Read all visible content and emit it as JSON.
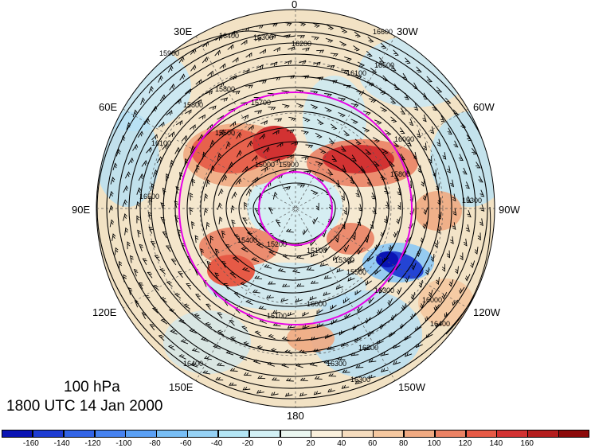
{
  "title": {
    "level": "100 hPa",
    "time": "1800 UTC 14 Jan 2000"
  },
  "longitude_labels": {
    "top": "0",
    "bottom": "180",
    "upper_left": "30E",
    "upper_right": "30W",
    "mid_upper_left": "60E",
    "mid_upper_right": "60W",
    "left": "90E",
    "right": "90W",
    "lower_left": "120E",
    "lower_right": "120W",
    "bottom_left": "150E",
    "bottom_right": "150W"
  },
  "contour_labels": [
    "16400",
    "16300",
    "16200",
    "16600",
    "16500",
    "15900",
    "15800",
    "15600",
    "15700",
    "15000",
    "15300",
    "15200",
    "15100",
    "15500",
    "16000",
    "16100",
    "15400",
    "15300",
    "16200",
    "16300",
    "16400",
    "16500",
    "16300",
    "15800",
    "15100",
    "16000",
    "16400",
    "16100",
    "15900",
    "15800",
    "16000",
    "16300"
  ],
  "colorbar": {
    "ticks": [
      "-160",
      "-140",
      "-120",
      "-100",
      "-80",
      "-60",
      "-40",
      "-20",
      "0",
      "20",
      "40",
      "60",
      "80",
      "100",
      "120",
      "140",
      "160"
    ],
    "colors": [
      "#0a14b4",
      "#1e3cd2",
      "#3264e6",
      "#4682f0",
      "#5aa0f5",
      "#78bef5",
      "#96d2f5",
      "#b4e6f5",
      "#d2f0f5",
      "#eaf6f0",
      "#faf0dc",
      "#f5dcbe",
      "#f5c8a0",
      "#f0aa82",
      "#eb8264",
      "#e65a46",
      "#d23232",
      "#b41e1e",
      "#8c0a0a"
    ]
  },
  "legend_colors": {
    "magenta_circle": "#e600e6",
    "contour_line": "#000000"
  }
}
